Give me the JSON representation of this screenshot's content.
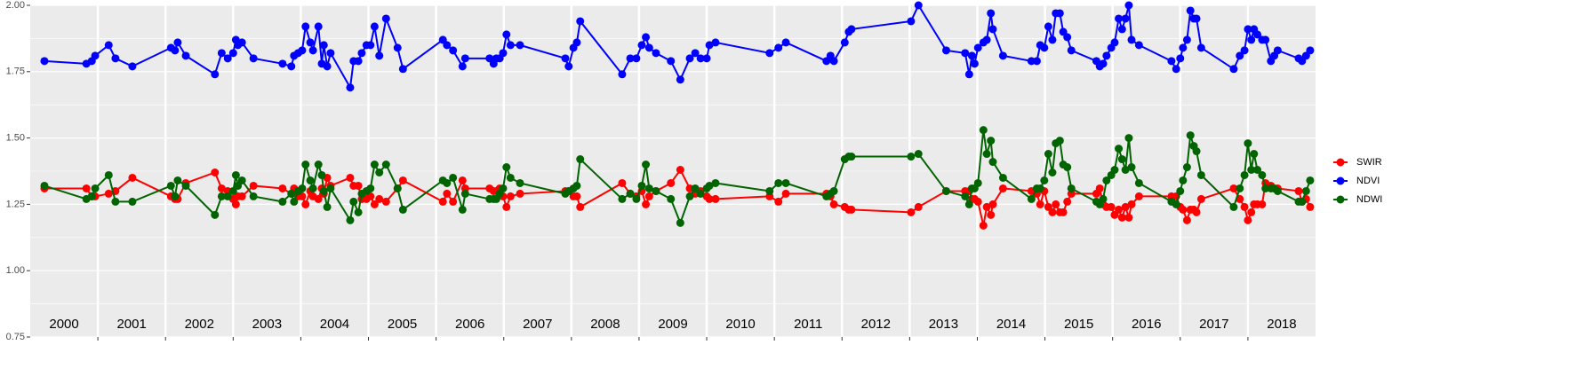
{
  "chart_data": {
    "type": "line",
    "x": [
      2000.21,
      2000.83,
      2000.91,
      2000.96,
      2001.16,
      2001.26,
      2001.51,
      2002.08,
      2002.14,
      2002.18,
      2002.3,
      2002.73,
      2002.83,
      2002.92,
      2003.0,
      2003.04,
      2003.07,
      2003.13,
      2003.3,
      2003.73,
      2003.86,
      2003.9,
      2003.96,
      2004.02,
      2004.07,
      2004.14,
      2004.18,
      2004.26,
      2004.31,
      2004.34,
      2004.39,
      2004.44,
      2004.73,
      2004.78,
      2004.85,
      2004.9,
      2004.97,
      2005.03,
      2005.09,
      2005.16,
      2005.26,
      2005.43,
      2005.51,
      2006.1,
      2006.16,
      2006.25,
      2006.39,
      2006.43,
      2006.79,
      2006.85,
      2006.89,
      2006.94,
      2006.99,
      2007.04,
      2007.1,
      2007.24,
      2007.91,
      2007.96,
      2008.03,
      2008.08,
      2008.13,
      2008.75,
      2008.87,
      2008.96,
      2009.04,
      2009.1,
      2009.15,
      2009.25,
      2009.47,
      2009.61,
      2009.75,
      2009.83,
      2009.91,
      2010.0,
      2010.04,
      2010.13,
      2010.93,
      2011.06,
      2011.17,
      2011.77,
      2011.83,
      2011.88,
      2012.04,
      2012.1,
      2012.14,
      2013.02,
      2013.13,
      2013.54,
      2013.82,
      2013.88,
      2013.92,
      2013.96,
      2014.01,
      2014.09,
      2014.14,
      2014.2,
      2014.23,
      2014.38,
      2014.8,
      2014.88,
      2014.93,
      2014.99,
      2015.05,
      2015.11,
      2015.16,
      2015.22,
      2015.27,
      2015.33,
      2015.39,
      2015.76,
      2015.81,
      2015.86,
      2015.91,
      2015.98,
      2016.03,
      2016.09,
      2016.14,
      2016.19,
      2016.24,
      2016.28,
      2016.39,
      2016.87,
      2016.94,
      2017.0,
      2017.04,
      2017.1,
      2017.15,
      2017.2,
      2017.24,
      2017.31,
      2017.79,
      2017.88,
      2017.95,
      2018.0,
      2018.05,
      2018.09,
      2018.14,
      2018.21,
      2018.26,
      2018.34,
      2018.39,
      2018.44,
      2018.75,
      2018.8,
      2018.86,
      2018.92
    ],
    "series": [
      {
        "name": "SWIR",
        "color": "#ff0000",
        "values": [
          1.31,
          1.31,
          1.28,
          1.28,
          1.29,
          1.3,
          1.35,
          1.28,
          1.27,
          1.27,
          1.33,
          1.37,
          1.31,
          1.3,
          1.27,
          1.25,
          1.28,
          1.28,
          1.32,
          1.31,
          1.29,
          1.31,
          1.28,
          1.28,
          1.25,
          1.3,
          1.28,
          1.27,
          1.31,
          1.29,
          1.35,
          1.32,
          1.35,
          1.32,
          1.32,
          1.27,
          1.27,
          1.28,
          1.25,
          1.27,
          1.26,
          1.31,
          1.34,
          1.26,
          1.29,
          1.26,
          1.34,
          1.31,
          1.31,
          1.3,
          1.3,
          1.31,
          1.28,
          1.24,
          1.28,
          1.29,
          1.3,
          1.3,
          1.28,
          1.28,
          1.24,
          1.33,
          1.29,
          1.28,
          1.3,
          1.25,
          1.28,
          1.3,
          1.33,
          1.38,
          1.31,
          1.29,
          1.3,
          1.28,
          1.27,
          1.27,
          1.28,
          1.26,
          1.29,
          1.29,
          1.28,
          1.25,
          1.24,
          1.23,
          1.23,
          1.22,
          1.24,
          1.3,
          1.3,
          1.3,
          1.27,
          1.27,
          1.26,
          1.17,
          1.24,
          1.21,
          1.25,
          1.31,
          1.3,
          1.29,
          1.25,
          1.3,
          1.24,
          1.22,
          1.25,
          1.22,
          1.22,
          1.26,
          1.29,
          1.29,
          1.31,
          1.25,
          1.24,
          1.24,
          1.21,
          1.23,
          1.2,
          1.24,
          1.2,
          1.25,
          1.28,
          1.28,
          1.28,
          1.24,
          1.23,
          1.19,
          1.23,
          1.23,
          1.22,
          1.27,
          1.31,
          1.27,
          1.24,
          1.19,
          1.22,
          1.25,
          1.25,
          1.25,
          1.33,
          1.32,
          1.31,
          1.31,
          1.3,
          1.26,
          1.27,
          1.24
        ]
      },
      {
        "name": "NDVI",
        "color": "#0000ff",
        "values": [
          1.79,
          1.78,
          1.79,
          1.81,
          1.85,
          1.8,
          1.77,
          1.84,
          1.83,
          1.86,
          1.81,
          1.74,
          1.82,
          1.8,
          1.82,
          1.87,
          1.85,
          1.86,
          1.8,
          1.78,
          1.77,
          1.81,
          1.82,
          1.83,
          1.92,
          1.86,
          1.83,
          1.92,
          1.78,
          1.85,
          1.77,
          1.82,
          1.69,
          1.79,
          1.79,
          1.82,
          1.85,
          1.85,
          1.92,
          1.81,
          1.95,
          1.84,
          1.76,
          1.87,
          1.85,
          1.83,
          1.77,
          1.8,
          1.8,
          1.78,
          1.8,
          1.8,
          1.82,
          1.89,
          1.85,
          1.85,
          1.8,
          1.77,
          1.84,
          1.86,
          1.94,
          1.74,
          1.8,
          1.8,
          1.85,
          1.88,
          1.84,
          1.82,
          1.79,
          1.72,
          1.8,
          1.82,
          1.8,
          1.8,
          1.85,
          1.86,
          1.82,
          1.84,
          1.86,
          1.79,
          1.81,
          1.79,
          1.86,
          1.9,
          1.91,
          1.94,
          2.0,
          1.83,
          1.82,
          1.74,
          1.81,
          1.78,
          1.84,
          1.86,
          1.87,
          1.97,
          1.91,
          1.81,
          1.79,
          1.79,
          1.85,
          1.84,
          1.92,
          1.87,
          1.97,
          1.97,
          1.9,
          1.88,
          1.83,
          1.79,
          1.77,
          1.78,
          1.81,
          1.84,
          1.86,
          1.95,
          1.91,
          1.95,
          2.0,
          1.87,
          1.85,
          1.79,
          1.76,
          1.8,
          1.84,
          1.87,
          1.98,
          1.95,
          1.95,
          1.84,
          1.76,
          1.81,
          1.83,
          1.91,
          1.87,
          1.91,
          1.89,
          1.87,
          1.87,
          1.79,
          1.81,
          1.83,
          1.8,
          1.79,
          1.81,
          1.83
        ]
      },
      {
        "name": "NDWI",
        "color": "#006400",
        "values": [
          1.32,
          1.27,
          1.28,
          1.31,
          1.36,
          1.26,
          1.26,
          1.32,
          1.28,
          1.34,
          1.32,
          1.21,
          1.28,
          1.28,
          1.3,
          1.36,
          1.32,
          1.34,
          1.28,
          1.26,
          1.29,
          1.26,
          1.3,
          1.31,
          1.4,
          1.34,
          1.31,
          1.4,
          1.36,
          1.3,
          1.24,
          1.31,
          1.19,
          1.26,
          1.22,
          1.29,
          1.3,
          1.31,
          1.4,
          1.37,
          1.4,
          1.31,
          1.23,
          1.34,
          1.33,
          1.35,
          1.23,
          1.29,
          1.27,
          1.27,
          1.27,
          1.29,
          1.31,
          1.39,
          1.35,
          1.33,
          1.29,
          1.3,
          1.31,
          1.32,
          1.42,
          1.27,
          1.29,
          1.27,
          1.32,
          1.4,
          1.31,
          1.3,
          1.27,
          1.18,
          1.28,
          1.31,
          1.29,
          1.31,
          1.32,
          1.33,
          1.3,
          1.33,
          1.33,
          1.28,
          1.29,
          1.3,
          1.42,
          1.43,
          1.43,
          1.43,
          1.44,
          1.3,
          1.28,
          1.25,
          1.31,
          1.31,
          1.33,
          1.53,
          1.44,
          1.49,
          1.41,
          1.35,
          1.27,
          1.31,
          1.31,
          1.34,
          1.44,
          1.37,
          1.48,
          1.49,
          1.4,
          1.39,
          1.31,
          1.26,
          1.25,
          1.27,
          1.34,
          1.36,
          1.38,
          1.46,
          1.42,
          1.38,
          1.5,
          1.39,
          1.33,
          1.26,
          1.25,
          1.3,
          1.34,
          1.39,
          1.51,
          1.47,
          1.45,
          1.36,
          1.24,
          1.31,
          1.36,
          1.48,
          1.38,
          1.44,
          1.38,
          1.36,
          1.31,
          1.31,
          1.31,
          1.3,
          1.26,
          1.26,
          1.3,
          1.34
        ]
      }
    ],
    "xlim": [
      2000,
      2019
    ],
    "xticks": [
      {
        "value": 2000.5,
        "label": "2000"
      },
      {
        "value": 2001.5,
        "label": "2001"
      },
      {
        "value": 2002.5,
        "label": "2002"
      },
      {
        "value": 2003.5,
        "label": "2003"
      },
      {
        "value": 2004.5,
        "label": "2004"
      },
      {
        "value": 2005.5,
        "label": "2005"
      },
      {
        "value": 2006.5,
        "label": "2006"
      },
      {
        "value": 2007.5,
        "label": "2007"
      },
      {
        "value": 2008.5,
        "label": "2008"
      },
      {
        "value": 2009.5,
        "label": "2009"
      },
      {
        "value": 2010.5,
        "label": "2010"
      },
      {
        "value": 2011.5,
        "label": "2011"
      },
      {
        "value": 2012.5,
        "label": "2012"
      },
      {
        "value": 2013.5,
        "label": "2013"
      },
      {
        "value": 2014.5,
        "label": "2014"
      },
      {
        "value": 2015.5,
        "label": "2015"
      },
      {
        "value": 2016.5,
        "label": "2016"
      },
      {
        "value": 2017.5,
        "label": "2017"
      },
      {
        "value": 2018.5,
        "label": "2018"
      }
    ],
    "x_grid": [
      2001,
      2002,
      2003,
      2004,
      2005,
      2006,
      2007,
      2008,
      2009,
      2010,
      2011,
      2012,
      2013,
      2014,
      2015,
      2016,
      2017,
      2018
    ],
    "ylim": [
      0.75,
      2.0
    ],
    "yticks": [
      {
        "value": 0.75,
        "label": "0.75"
      },
      {
        "value": 1.0,
        "label": "1.00"
      },
      {
        "value": 1.25,
        "label": "1.25"
      },
      {
        "value": 1.5,
        "label": "1.50"
      },
      {
        "value": 1.75,
        "label": "1.75"
      },
      {
        "value": 2.0,
        "label": "2.00"
      }
    ],
    "y_minor_grid": [
      0.875,
      1.125,
      1.375,
      1.625,
      1.875
    ],
    "grid": true,
    "legend": "right"
  }
}
